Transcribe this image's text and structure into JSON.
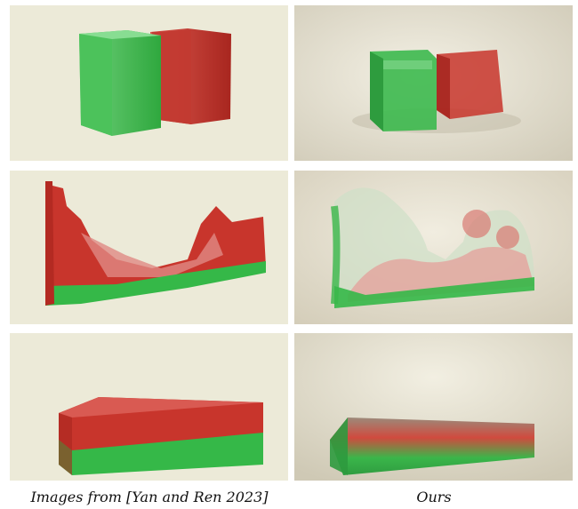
{
  "figure": {
    "captions": {
      "left": "Images from [Yan and Ren 2023]",
      "right": "Ours"
    },
    "colors": {
      "left_background": "#ecead8",
      "right_background": "#ddd8c8",
      "green_fluid": "#35b848",
      "red_fluid": "#c8352c"
    },
    "panels": [
      {
        "row": "top",
        "column": "left",
        "content": "two-fluid-blocks"
      },
      {
        "row": "top",
        "column": "right",
        "content": "two-fluid-blocks"
      },
      {
        "row": "middle",
        "column": "left",
        "content": "sloshing-fluids"
      },
      {
        "row": "middle",
        "column": "right",
        "content": "sloshing-fluids"
      },
      {
        "row": "bottom",
        "column": "left",
        "content": "settled-layers"
      },
      {
        "row": "bottom",
        "column": "right",
        "content": "settled-layers"
      }
    ]
  }
}
